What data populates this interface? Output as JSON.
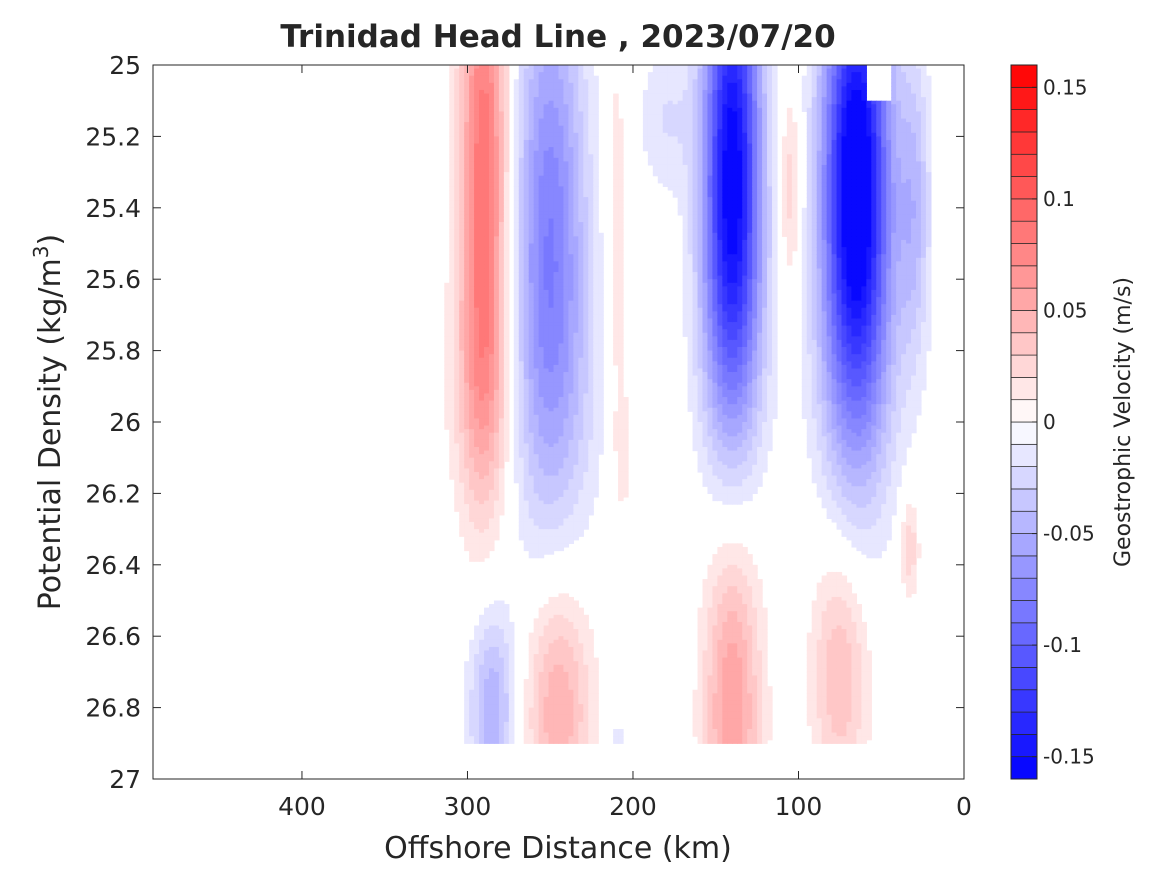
{
  "chart_data": {
    "type": "heatmap",
    "title": "Trinidad Head Line , 2023/07/20",
    "xlabel": "Offshore Distance (km)",
    "ylabel_main": "Potential Density (kg/m",
    "ylabel_sup": "3",
    "ylabel_close": ")",
    "colorbar_label": "Geostrophic Velocity (m/s)",
    "xlim": [
      490,
      0
    ],
    "x_reversed": true,
    "ylim": [
      25,
      27
    ],
    "y_reversed": true,
    "x_ticks": [
      {
        "value": 400,
        "label": "400"
      },
      {
        "value": 300,
        "label": "300"
      },
      {
        "value": 200,
        "label": "200"
      },
      {
        "value": 100,
        "label": "100"
      },
      {
        "value": 0,
        "label": "0"
      }
    ],
    "y_ticks": [
      {
        "value": 25,
        "label": "25"
      },
      {
        "value": 25.2,
        "label": "25.2"
      },
      {
        "value": 25.4,
        "label": "25.4"
      },
      {
        "value": 25.6,
        "label": "25.6"
      },
      {
        "value": 25.8,
        "label": "25.8"
      },
      {
        "value": 26,
        "label": "26"
      },
      {
        "value": 26.2,
        "label": "26.2"
      },
      {
        "value": 26.4,
        "label": "26.4"
      },
      {
        "value": 26.6,
        "label": "26.6"
      },
      {
        "value": 26.8,
        "label": "26.8"
      },
      {
        "value": 27,
        "label": "27"
      }
    ],
    "colorbar": {
      "range": [
        -0.16,
        0.16
      ],
      "levels": 32,
      "ticks": [
        {
          "value": 0.15,
          "label": "0.15"
        },
        {
          "value": 0.1,
          "label": "0.1"
        },
        {
          "value": 0.05,
          "label": "0.05"
        },
        {
          "value": 0,
          "label": "0"
        },
        {
          "value": -0.05,
          "label": "-0.05"
        },
        {
          "value": -0.1,
          "label": "-0.1"
        },
        {
          "value": -0.15,
          "label": "-0.15"
        }
      ],
      "positive_color": "#ff0000",
      "negative_color": "#0000ff",
      "zero_color": "#ffffff"
    },
    "grid": false,
    "colorbar_position": "right",
    "features": [
      {
        "name": "positive core near 290 km",
        "x": 290,
        "y": 25.3,
        "sx": 10,
        "sy": 0.55,
        "v": 0.09
      },
      {
        "name": "positive upper flank near 290 km",
        "x": 290,
        "y": 25.9,
        "sx": 14,
        "sy": 0.25,
        "v": 0.03
      },
      {
        "name": "negative core near 250 km",
        "x": 250,
        "y": 25.4,
        "sx": 15,
        "sy": 0.5,
        "v": -0.07
      },
      {
        "name": "negative wide near 250 km",
        "x": 250,
        "y": 25.9,
        "sx": 22,
        "sy": 0.35,
        "v": -0.025
      },
      {
        "name": "positive thin near 210 km",
        "x": 210,
        "y": 25.5,
        "sx": 5,
        "sy": 0.45,
        "v": 0.02
      },
      {
        "name": "positive thin lower near 205 km",
        "x": 205,
        "y": 26.1,
        "sx": 5,
        "sy": 0.15,
        "v": 0.012
      },
      {
        "name": "negative surface near 180 km",
        "x": 180,
        "y": 25.15,
        "sx": 12,
        "sy": 0.15,
        "v": -0.02
      },
      {
        "name": "negative core near 140 km",
        "x": 140,
        "y": 25.2,
        "sx": 12,
        "sy": 0.45,
        "v": -0.14
      },
      {
        "name": "negative flank near 140 km",
        "x": 140,
        "y": 25.7,
        "sx": 14,
        "sy": 0.35,
        "v": -0.05
      },
      {
        "name": "positive near 105 km",
        "x": 105,
        "y": 25.35,
        "sx": 5,
        "sy": 0.2,
        "v": 0.03
      },
      {
        "name": "negative core near 65 km",
        "x": 65,
        "y": 25.25,
        "sx": 14,
        "sy": 0.4,
        "v": -0.16
      },
      {
        "name": "negative lower near 65 km",
        "x": 65,
        "y": 25.8,
        "sx": 16,
        "sy": 0.35,
        "v": -0.06
      },
      {
        "name": "negative inshore near 30 km",
        "x": 30,
        "y": 25.4,
        "sx": 7,
        "sy": 0.3,
        "v": -0.04
      },
      {
        "name": "negative deep near 285 km",
        "x": 285,
        "y": 26.8,
        "sx": 10,
        "sy": 0.2,
        "v": -0.05
      },
      {
        "name": "positive deep near 245 km",
        "x": 245,
        "y": 26.8,
        "sx": 14,
        "sy": 0.25,
        "v": 0.05
      },
      {
        "name": "negative deep near 210 km",
        "x": 210,
        "y": 26.9,
        "sx": 6,
        "sy": 0.06,
        "v": -0.015
      },
      {
        "name": "positive deep near 140 km",
        "x": 140,
        "y": 26.8,
        "sx": 12,
        "sy": 0.35,
        "v": 0.06
      },
      {
        "name": "positive deep near 75 km",
        "x": 75,
        "y": 26.7,
        "sx": 12,
        "sy": 0.25,
        "v": 0.04
      },
      {
        "name": "positive deep near 33 km",
        "x": 33,
        "y": 26.35,
        "sx": 4,
        "sy": 0.1,
        "v": 0.03
      }
    ],
    "depth_profile": [
      {
        "x": 320,
        "y_max": 25.6
      },
      {
        "x": 310,
        "y_max": 26.9
      },
      {
        "x": 200,
        "y_max": 26.9
      },
      {
        "x": 30,
        "y_max": 26.9
      },
      {
        "x": 20,
        "y_max": 26.9
      }
    ],
    "blank_patches": [
      {
        "x1": 60,
        "x2": 45,
        "y1": 25.0,
        "y2": 25.1
      }
    ]
  }
}
